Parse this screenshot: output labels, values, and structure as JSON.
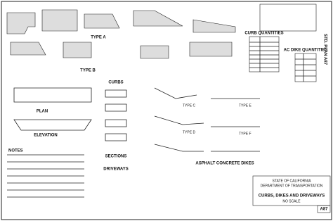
{
  "title_block": {
    "side_title": "STD. PLAN A87",
    "title": "CURBS, DIKES AND DRIVEWAYS",
    "scale": "NO SCALE",
    "sheet": "A87",
    "agency": "STATE OF CALIFORNIA",
    "department": "DEPARTMENT OF TRANSPORTATION"
  },
  "labels": {
    "type_a": "TYPE A",
    "type_b": "TYPE B",
    "curbs": "CURBS",
    "plan": "PLAN",
    "elevation": "ELEVATION",
    "sections": "SECTIONS",
    "driveways": "DRIVEWAYS",
    "notes": "NOTES",
    "ac_dikes": "ASPHALT CONCRETE DIKES",
    "curb_quantities": "CURB QUANTITIES",
    "dike_quantities": "AC DIKE QUANTITIES",
    "type_c": "TYPE C",
    "type_d": "TYPE D",
    "type_e": "TYPE E",
    "type_f": "TYPE F"
  }
}
